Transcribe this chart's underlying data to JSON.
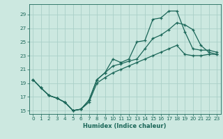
{
  "xlabel": "Humidex (Indice chaleur)",
  "bg_color": "#cce8e0",
  "grid_color": "#aacfc8",
  "line_color": "#1a6658",
  "xlim": [
    -0.5,
    23.5
  ],
  "ylim": [
    14.5,
    30.5
  ],
  "xticks": [
    0,
    1,
    2,
    3,
    4,
    5,
    6,
    7,
    8,
    9,
    10,
    11,
    12,
    13,
    14,
    15,
    16,
    17,
    18,
    19,
    20,
    21,
    22,
    23
  ],
  "yticks": [
    15,
    17,
    19,
    21,
    23,
    25,
    27,
    29
  ],
  "line1_x": [
    0,
    1,
    2,
    3,
    4,
    5,
    6,
    7,
    8,
    9,
    10,
    11,
    12,
    13,
    14,
    15,
    16,
    17,
    18,
    19,
    20,
    21,
    22,
    23
  ],
  "line1_y": [
    19.5,
    18.3,
    17.2,
    16.8,
    16.2,
    15.0,
    15.2,
    16.5,
    19.5,
    20.5,
    22.5,
    22.0,
    22.5,
    25.0,
    25.2,
    28.3,
    28.5,
    29.5,
    29.5,
    26.5,
    24.0,
    23.8,
    23.8,
    23.5
  ],
  "line2_x": [
    0,
    1,
    2,
    3,
    4,
    5,
    6,
    7,
    8,
    9,
    10,
    11,
    12,
    13,
    14,
    15,
    16,
    17,
    18,
    19,
    20,
    21,
    22,
    23
  ],
  "line2_y": [
    19.5,
    18.3,
    17.2,
    16.8,
    16.2,
    15.0,
    15.2,
    16.5,
    19.5,
    20.5,
    21.5,
    21.8,
    22.2,
    22.5,
    24.0,
    25.5,
    26.0,
    26.8,
    27.8,
    27.5,
    26.8,
    24.5,
    23.5,
    23.2
  ],
  "line3_x": [
    0,
    1,
    2,
    3,
    4,
    5,
    6,
    7,
    8,
    9,
    10,
    11,
    12,
    13,
    14,
    15,
    16,
    17,
    18,
    19,
    20,
    21,
    22,
    23
  ],
  "line3_y": [
    19.5,
    18.3,
    17.2,
    16.8,
    16.2,
    15.0,
    15.2,
    16.2,
    19.0,
    19.8,
    20.5,
    21.0,
    21.5,
    22.0,
    22.5,
    23.0,
    23.5,
    24.0,
    24.5,
    23.2,
    23.0,
    23.0,
    23.2,
    23.2
  ]
}
